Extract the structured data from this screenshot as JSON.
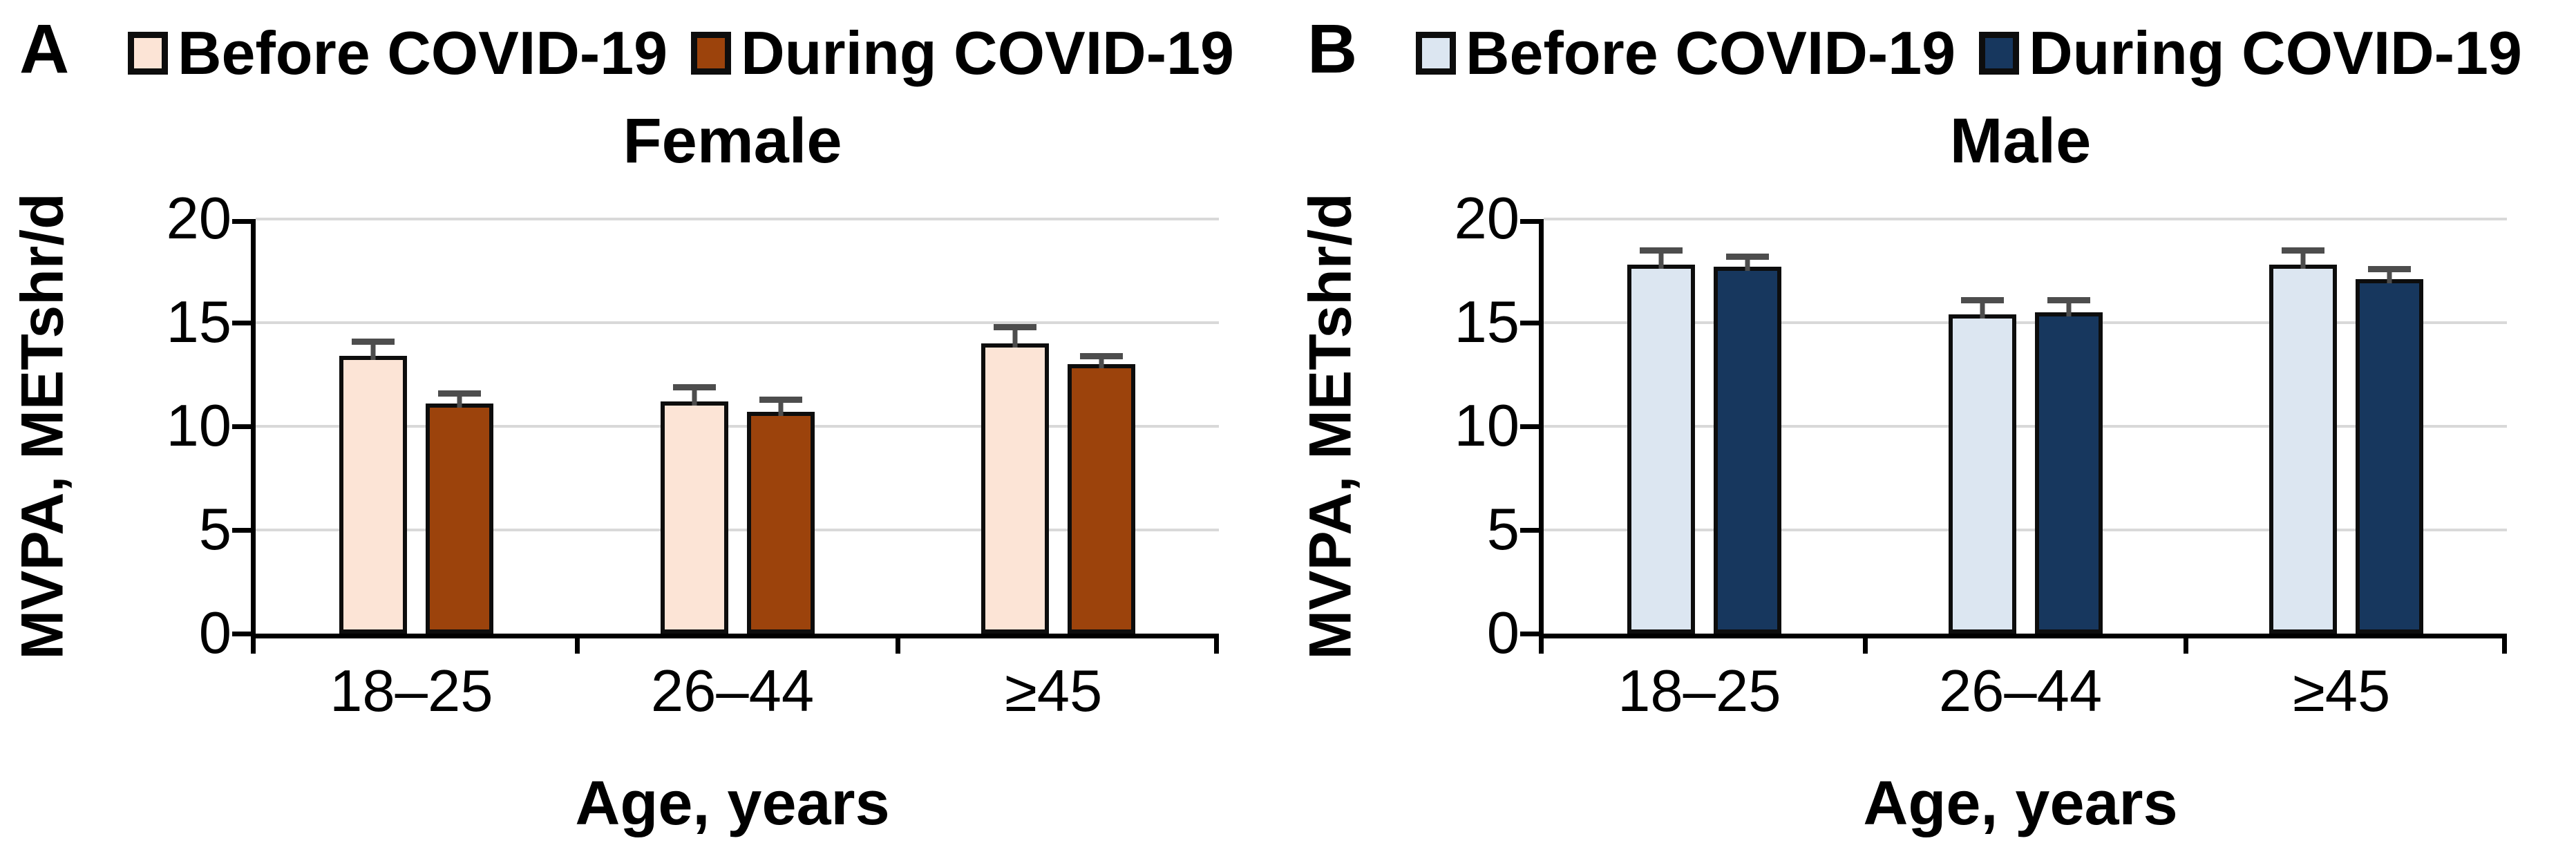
{
  "chart_data": [
    {
      "type": "bar",
      "panel_label": "A",
      "title": "Female",
      "categories": [
        "18–25",
        "26–44",
        "≥45"
      ],
      "series": [
        {
          "name": "Before COVID-19",
          "color": "#FCE4D6",
          "values": [
            13.4,
            11.2,
            14.0
          ],
          "errors_plus": [
            0.9,
            0.9,
            1.0
          ]
        },
        {
          "name": "During COVID-19",
          "color": "#9C430C",
          "values": [
            11.1,
            10.7,
            13.0
          ],
          "errors_plus": [
            0.7,
            0.8,
            0.6
          ]
        }
      ],
      "xlabel": "Age, years",
      "ylabel": "MVPA, METshr/d",
      "ylim": [
        0,
        20
      ],
      "yticks": [
        0,
        5,
        10,
        15,
        20
      ],
      "grid": true,
      "legend_position": "top"
    },
    {
      "type": "bar",
      "panel_label": "B",
      "title": "Male",
      "categories": [
        "18–25",
        "26–44",
        "≥45"
      ],
      "series": [
        {
          "name": "Before COVID-19",
          "color": "#DCE6F1",
          "values": [
            17.8,
            15.4,
            17.8
          ],
          "errors_plus": [
            0.9,
            0.9,
            0.9
          ]
        },
        {
          "name": "During COVID-19",
          "color": "#17375E",
          "values": [
            17.7,
            15.5,
            17.1
          ],
          "errors_plus": [
            0.7,
            0.8,
            0.7
          ]
        }
      ],
      "xlabel": "Age, years",
      "ylabel": "MVPA, METshr/d",
      "ylim": [
        0,
        20
      ],
      "yticks": [
        0,
        5,
        10,
        15,
        20
      ],
      "grid": true,
      "legend_position": "top"
    }
  ],
  "style": {
    "gridline_color": "#d9d9d9",
    "axis_color": "#000000",
    "error_bar_color": "#4d4d4d",
    "bar_border_color": "#0d0d0d",
    "background": "#ffffff"
  }
}
